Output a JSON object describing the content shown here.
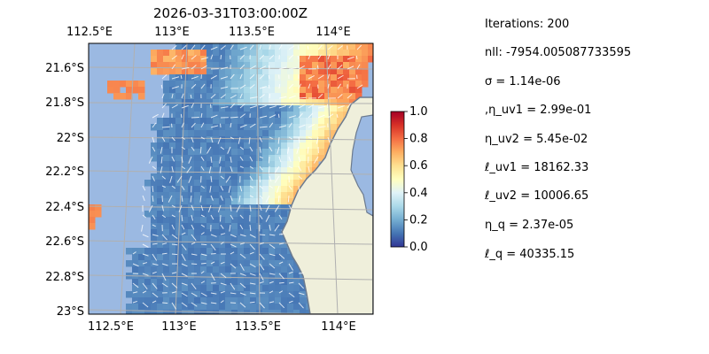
{
  "chart_data": {
    "type": "heatmap",
    "title": "2026-03-31T03:00:00Z",
    "x_ticks_top": [
      "112.5°E",
      "113°E",
      "113.5°E",
      "114°E"
    ],
    "x_ticks_bottom": [
      "112.5°E",
      "113°E",
      "113.5°E",
      "114°E"
    ],
    "y_ticks": [
      "21.6°S",
      "21.8°S",
      "22°S",
      "22.2°S",
      "22.4°S",
      "22.6°S",
      "22.8°S",
      "23°S"
    ],
    "colorbar": {
      "min": 0.0,
      "max": 1.0,
      "ticks": [
        "0.0",
        "0.2",
        "0.4",
        "0.6",
        "0.8",
        "1.0"
      ],
      "colormap": "RdYlBu_r"
    },
    "grid": true,
    "overlay": "current velocity arrows (quiver), white",
    "colors": {
      "ocean_background": "#9bb9e2",
      "land": "#efefdb",
      "coast": "#6b7a8f"
    }
  },
  "stats": {
    "iterations": "Iterations: 200",
    "nll": "nll: -7954.005087733595",
    "sigma": "σ = 1.14e-06",
    "eta_uv1": ",η_uv1 = 2.99e-01",
    "eta_uv2": "η_uv2 = 5.45e-02",
    "ell_uv1": "ℓ_uv1 = 18162.33",
    "ell_uv2": "ℓ_uv2 = 10006.65",
    "eta_q": "η_q = 2.37e-05",
    "ell_q": "ℓ_q = 40335.15"
  }
}
